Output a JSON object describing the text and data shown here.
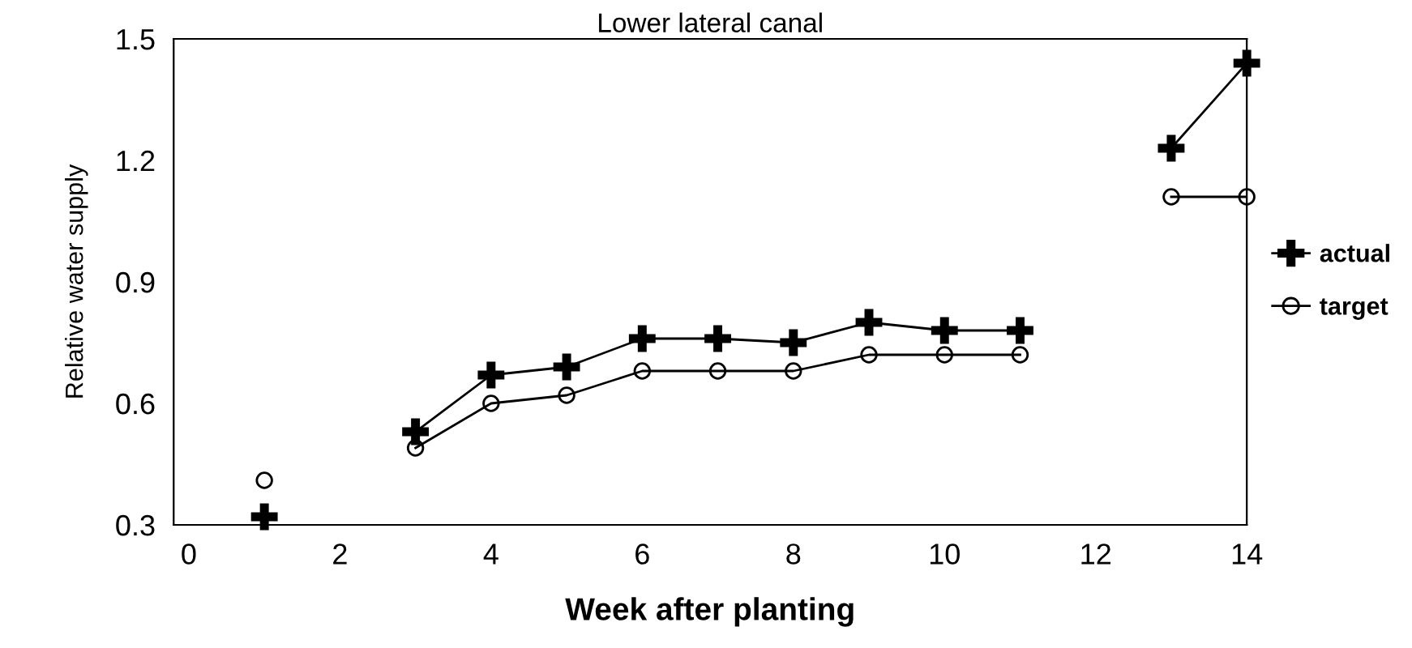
{
  "chart_data": {
    "type": "line",
    "title": "Lower lateral canal",
    "xlabel": "Week after planting",
    "ylabel": "Relative water supply",
    "x": [
      1,
      2,
      3,
      4,
      5,
      6,
      7,
      8,
      9,
      10,
      11,
      12,
      13,
      14
    ],
    "series": [
      {
        "name": "actual",
        "color": "#000000",
        "marker": "cross",
        "values": [
          0.32,
          null,
          0.53,
          0.67,
          0.69,
          0.76,
          0.76,
          0.75,
          0.8,
          0.78,
          0.78,
          null,
          1.23,
          1.44
        ]
      },
      {
        "name": "target",
        "color": "#000000",
        "marker": "circle",
        "values": [
          0.41,
          null,
          0.49,
          0.6,
          0.62,
          0.68,
          0.68,
          0.68,
          0.72,
          0.72,
          0.72,
          null,
          1.11,
          1.11
        ]
      }
    ],
    "xlim": [
      -0.2,
      14
    ],
    "xticks": [
      0,
      2,
      4,
      6,
      8,
      10,
      12,
      14
    ],
    "ylim": [
      0.3,
      1.5
    ],
    "yticks": [
      0.3,
      0.6,
      0.9,
      1.2,
      1.5
    ],
    "grid": false,
    "legend": "right",
    "line_style": "solid"
  }
}
